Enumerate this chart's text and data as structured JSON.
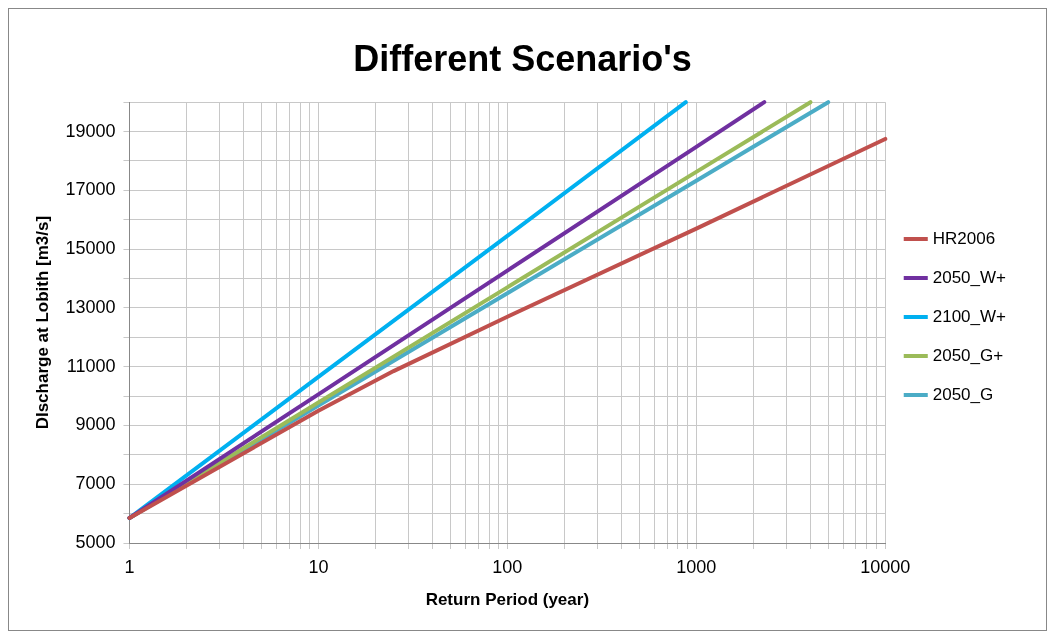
{
  "chart_data": {
    "type": "line",
    "title": "Different Scenario's",
    "xlabel": "Return Period (year)",
    "ylabel": "DIscharge at Lobith [m3/s]",
    "log": "x",
    "grid": true,
    "legend": "right",
    "marker": "none",
    "line_style": "solid",
    "xlim": [
      1,
      10000
    ],
    "xticks": [
      1,
      {
        "value": 2,
        "label": null
      },
      {
        "value": 3,
        "label": null
      },
      {
        "value": 4,
        "label": null
      },
      {
        "value": 5,
        "label": null
      },
      {
        "value": 6,
        "label": null
      },
      {
        "value": 7,
        "label": null
      },
      {
        "value": 8,
        "label": null
      },
      {
        "value": 9,
        "label": null
      },
      10,
      {
        "value": 20,
        "label": null
      },
      {
        "value": 30,
        "label": null
      },
      {
        "value": 40,
        "label": null
      },
      {
        "value": 50,
        "label": null
      },
      {
        "value": 60,
        "label": null
      },
      {
        "value": 70,
        "label": null
      },
      {
        "value": 80,
        "label": null
      },
      {
        "value": 90,
        "label": null
      },
      100,
      {
        "value": 200,
        "label": null
      },
      {
        "value": 300,
        "label": null
      },
      {
        "value": 400,
        "label": null
      },
      {
        "value": 500,
        "label": null
      },
      {
        "value": 600,
        "label": null
      },
      {
        "value": 700,
        "label": null
      },
      {
        "value": 800,
        "label": null
      },
      {
        "value": 900,
        "label": null
      },
      1000,
      {
        "value": 2000,
        "label": null
      },
      {
        "value": 3000,
        "label": null
      },
      {
        "value": 4000,
        "label": null
      },
      {
        "value": 5000,
        "label": null
      },
      {
        "value": 6000,
        "label": null
      },
      {
        "value": 7000,
        "label": null
      },
      {
        "value": 8000,
        "label": null
      },
      {
        "value": 9000,
        "label": null
      },
      10000
    ],
    "ylim": [
      5000,
      20000
    ],
    "yticks": [
      5000,
      {
        "value": 6000,
        "label": null
      },
      7000,
      {
        "value": 8000,
        "label": null
      },
      9000,
      {
        "value": 10000,
        "label": null
      },
      11000,
      {
        "value": 12000,
        "label": null
      },
      13000,
      {
        "value": 14000,
        "label": null
      },
      15000,
      {
        "value": 16000,
        "label": null
      },
      17000,
      {
        "value": 18000,
        "label": null
      },
      19000,
      {
        "value": 20000,
        "label": null
      }
    ],
    "series": [
      {
        "name": "HR2006",
        "color": "#c0504d",
        "x": [
          1,
          10,
          25,
          100,
          1000,
          10000
        ],
        "values": [
          5850,
          9500,
          10850,
          12700,
          15700,
          18750
        ]
      },
      {
        "name": "2050_W+",
        "color": "#7030a0",
        "x": [
          1,
          10,
          100,
          1000,
          2290
        ],
        "values": [
          5850,
          10060,
          14270,
          18480,
          20000
        ]
      },
      {
        "name": "2100_W+",
        "color": "#00b0f0",
        "x": [
          1,
          10,
          100,
          880
        ],
        "values": [
          5850,
          10650,
          15450,
          20000
        ]
      },
      {
        "name": "2050_G+",
        "color": "#9bbb59",
        "x": [
          1,
          10,
          100,
          1000,
          4020
        ],
        "values": [
          5850,
          9780,
          13700,
          17630,
          20000
        ]
      },
      {
        "name": "2050_G",
        "color": "#4bacc6",
        "x": [
          1,
          10,
          100,
          1000,
          4990
        ],
        "values": [
          5850,
          9680,
          13500,
          17330,
          20000
        ]
      }
    ]
  }
}
